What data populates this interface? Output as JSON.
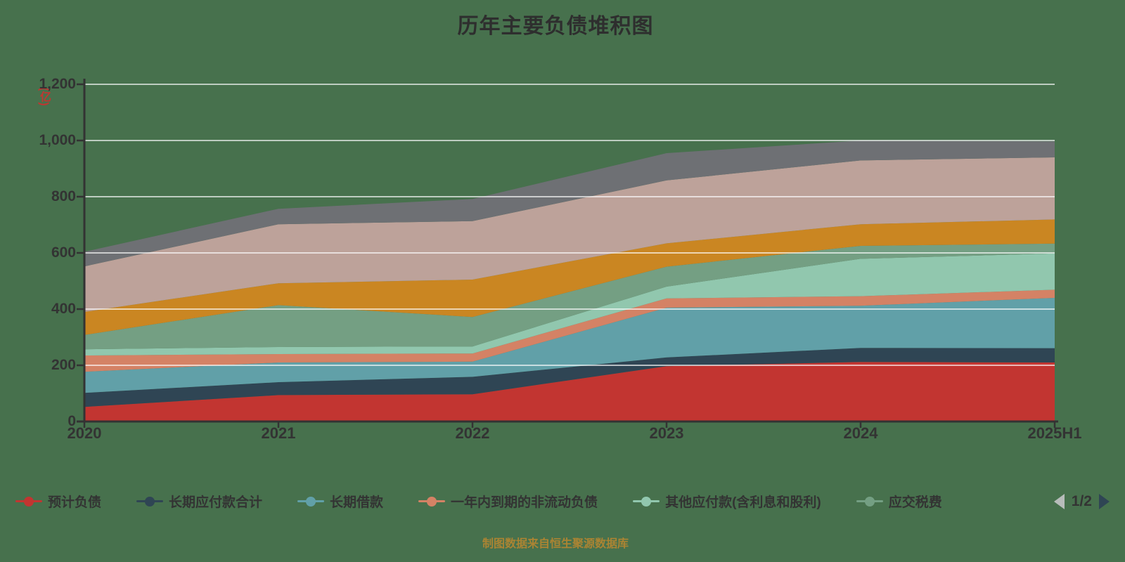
{
  "title": "历年主要负债堆积图",
  "footer_note": "制图数据来自恒生聚源数据库",
  "colors": {
    "background": "#47714d",
    "axis": "#333333",
    "gridline": "rgba(255,255,255,0.65)",
    "title_text": "#2e2e2e",
    "footer_text": "#ab8433",
    "y_unit_text": "#c23531",
    "pager_prev_arrow": "#b7bcba",
    "pager_next_arrow": "#2f4554"
  },
  "y_axis": {
    "unit": "(亿)",
    "tick_labels_top_down": [
      "1,200",
      "1,000",
      "800",
      "600",
      "400",
      "200",
      "0"
    ]
  },
  "legend": {
    "pagination": {
      "label": "1/2",
      "prev_icon": "left-arrow",
      "next_icon": "right-arrow"
    },
    "visible_count": 6
  },
  "chart_data": {
    "type": "area",
    "stacked": true,
    "grid": true,
    "legend_position": "bottom",
    "categories": [
      "2020",
      "2021",
      "2022",
      "2023",
      "2024",
      "2025H1"
    ],
    "ylim": [
      0,
      1200
    ],
    "y_interval": 200,
    "series": [
      {
        "name": "预计负债",
        "color": "#c23531",
        "values": [
          52,
          94,
          97,
          197,
          212,
          210
        ]
      },
      {
        "name": "长期应付款合计",
        "color": "#2f4554",
        "values": [
          50,
          46,
          62,
          31,
          50,
          51
        ]
      },
      {
        "name": "长期借款",
        "color": "#61a0a8",
        "values": [
          75,
          70,
          54,
          177,
          150,
          179
        ]
      },
      {
        "name": "一年内到期的非流动负债",
        "color": "#d48265",
        "values": [
          58,
          30,
          29,
          33,
          34,
          29
        ]
      },
      {
        "name": "其他应付款(含利息和股利)",
        "color": "#91c7ae",
        "values": [
          22,
          25,
          25,
          42,
          133,
          129
        ]
      },
      {
        "name": "应交税费",
        "color": "#749f83",
        "values": [
          51,
          149,
          105,
          71,
          46,
          35
        ]
      },
      {
        "name": "",
        "color": "#ca8622",
        "values": [
          82,
          78,
          133,
          83,
          77,
          86
        ]
      },
      {
        "name": "",
        "color": "#bda29a",
        "values": [
          162,
          210,
          208,
          224,
          227,
          221
        ]
      },
      {
        "name": "",
        "color": "#6e7074",
        "values": [
          52,
          55,
          79,
          97,
          71,
          57
        ]
      }
    ]
  }
}
